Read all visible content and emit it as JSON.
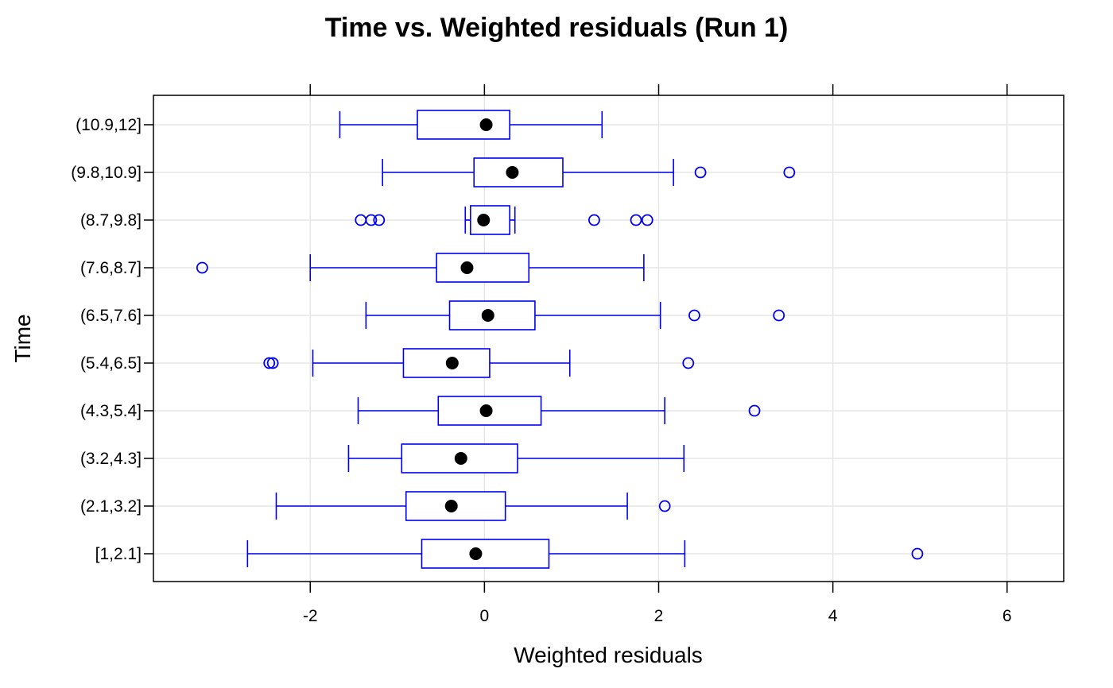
{
  "chart_data": {
    "type": "boxplot",
    "orientation": "horizontal",
    "title": "Time vs. Weighted residuals (Run 1)",
    "xlabel": "Weighted residuals",
    "ylabel": "Time",
    "xlim": [
      -3.8,
      6.65
    ],
    "xticks": [
      -2,
      0,
      2,
      4,
      6
    ],
    "xtick_labels": [
      "-2",
      "0",
      "2",
      "4",
      "6"
    ],
    "grid": true,
    "colors": {
      "box": "#0000ee",
      "median": "#000000",
      "grid": "#e6e6e6",
      "frame": "#000000"
    },
    "categories": [
      "[1,2.1]",
      "(2.1,3.2]",
      "(3.2,4.3]",
      "(4.3,5.4]",
      "(5.4,6.5]",
      "(6.5,7.6]",
      "(7.6,8.7]",
      "(8.7,9.8]",
      "(9.8,10.9]",
      "(10.9,12]"
    ],
    "boxes": [
      {
        "whisker_low": -2.72,
        "q1": -0.72,
        "median": -0.1,
        "q3": 0.74,
        "whisker_high": 2.3,
        "outliers": [
          4.97
        ]
      },
      {
        "whisker_low": -2.39,
        "q1": -0.9,
        "median": -0.38,
        "q3": 0.24,
        "whisker_high": 1.64,
        "outliers": [
          2.07
        ]
      },
      {
        "whisker_low": -1.56,
        "q1": -0.95,
        "median": -0.27,
        "q3": 0.38,
        "whisker_high": 2.29,
        "outliers": []
      },
      {
        "whisker_low": -1.45,
        "q1": -0.53,
        "median": 0.02,
        "q3": 0.65,
        "whisker_high": 2.07,
        "outliers": [
          3.1
        ]
      },
      {
        "whisker_low": -1.97,
        "q1": -0.93,
        "median": -0.37,
        "q3": 0.06,
        "whisker_high": 0.98,
        "outliers": [
          -2.47,
          -2.43,
          2.34
        ]
      },
      {
        "whisker_low": -1.36,
        "q1": -0.4,
        "median": 0.04,
        "q3": 0.58,
        "whisker_high": 2.02,
        "outliers": [
          2.41,
          3.38
        ]
      },
      {
        "whisker_low": -2.0,
        "q1": -0.55,
        "median": -0.2,
        "q3": 0.51,
        "whisker_high": 1.83,
        "outliers": [
          -3.24
        ]
      },
      {
        "whisker_low": -0.22,
        "q1": -0.16,
        "median": -0.01,
        "q3": 0.29,
        "whisker_high": 0.35,
        "outliers": [
          -1.42,
          -1.3,
          -1.21,
          1.26,
          1.74,
          1.87
        ]
      },
      {
        "whisker_low": -1.17,
        "q1": -0.12,
        "median": 0.32,
        "q3": 0.9,
        "whisker_high": 2.17,
        "outliers": [
          2.48,
          3.5
        ]
      },
      {
        "whisker_low": -1.66,
        "q1": -0.77,
        "median": 0.02,
        "q3": 0.29,
        "whisker_high": 1.35,
        "outliers": []
      }
    ]
  }
}
